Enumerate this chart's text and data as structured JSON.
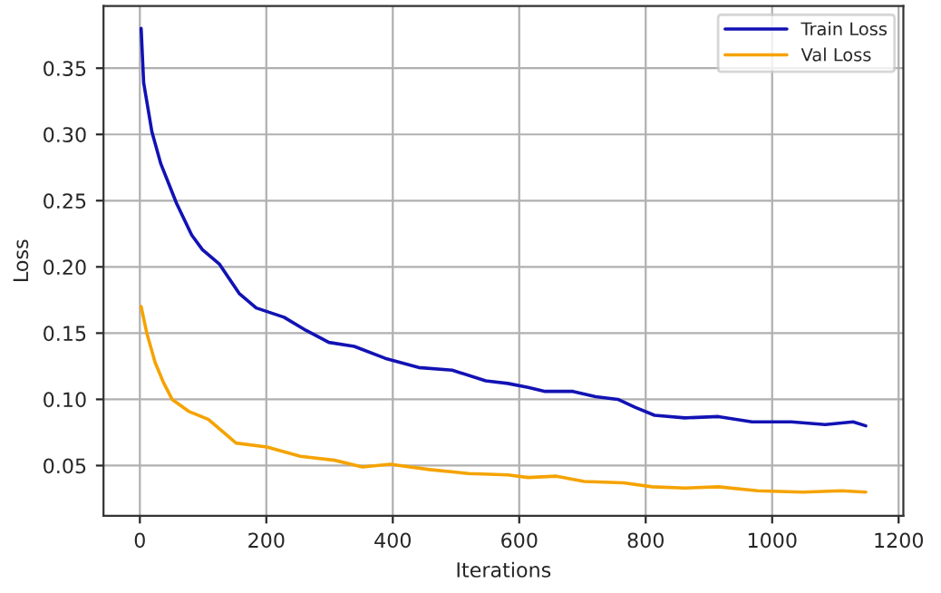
{
  "chart_data": {
    "type": "line",
    "xlabel": "Iterations",
    "ylabel": "Loss",
    "xlim": [
      -57.5,
      1207.5
    ],
    "xticks": [
      0,
      200,
      400,
      600,
      800,
      1000,
      1200
    ],
    "ylim": [
      0.012,
      0.397
    ],
    "yticks": [
      {
        "value": 0.05,
        "label": "0.05"
      },
      {
        "value": 0.1,
        "label": "0.10"
      },
      {
        "value": 0.15,
        "label": "0.15"
      },
      {
        "value": 0.2,
        "label": "0.20"
      },
      {
        "value": 0.25,
        "label": "0.25"
      },
      {
        "value": 0.3,
        "label": "0.30"
      },
      {
        "value": 0.35,
        "label": "0.35"
      }
    ],
    "grid": true,
    "legend": "top right",
    "series": [
      {
        "name": "Train Loss",
        "color": "#1212b4",
        "x": [
          2,
          6,
          19,
          33,
          58,
          82,
          99,
          126,
          157,
          184,
          228,
          263,
          299,
          339,
          388,
          441,
          494,
          547,
          582,
          614,
          641,
          685,
          721,
          756,
          783,
          814,
          862,
          915,
          968,
          1030,
          1084,
          1128,
          1148
        ],
        "values": [
          0.38,
          0.339,
          0.302,
          0.278,
          0.248,
          0.224,
          0.213,
          0.202,
          0.18,
          0.169,
          0.162,
          0.152,
          0.143,
          0.14,
          0.131,
          0.124,
          0.122,
          0.114,
          0.112,
          0.109,
          0.106,
          0.106,
          0.102,
          0.1,
          0.094,
          0.088,
          0.086,
          0.087,
          0.083,
          0.083,
          0.081,
          0.083,
          0.08
        ]
      },
      {
        "name": "Val Loss",
        "color": "#f5a300",
        "x": [
          2,
          11,
          24,
          37,
          51,
          77,
          108,
          130,
          152,
          201,
          254,
          308,
          352,
          396,
          458,
          520,
          582,
          614,
          659,
          703,
          765,
          810,
          862,
          915,
          977,
          1048,
          1110,
          1148
        ],
        "values": [
          0.17,
          0.15,
          0.128,
          0.113,
          0.1,
          0.091,
          0.085,
          0.076,
          0.067,
          0.064,
          0.057,
          0.054,
          0.049,
          0.051,
          0.047,
          0.044,
          0.043,
          0.041,
          0.042,
          0.038,
          0.037,
          0.034,
          0.033,
          0.034,
          0.031,
          0.03,
          0.031,
          0.03
        ]
      }
    ]
  }
}
